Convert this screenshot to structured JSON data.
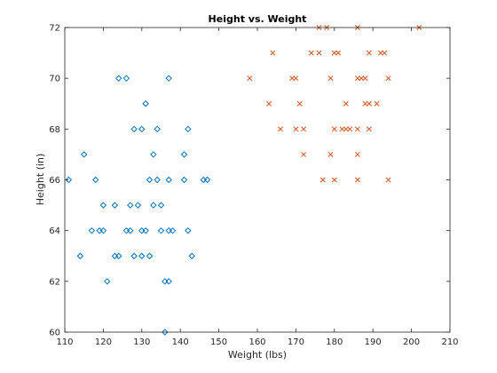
{
  "chart_data": {
    "type": "scatter",
    "title": "Height vs. Weight",
    "xlabel": "Weight (lbs)",
    "ylabel": "Height (in)",
    "xlim": [
      110,
      210
    ],
    "ylim": [
      60,
      72
    ],
    "xticks": [
      110,
      120,
      130,
      140,
      150,
      160,
      170,
      180,
      190,
      200,
      210
    ],
    "yticks": [
      60,
      62,
      64,
      66,
      68,
      70,
      72
    ],
    "grid": false,
    "legend": "none",
    "series": [
      {
        "marker": "diamond",
        "color": "#0072BD",
        "points": [
          [
            111,
            66
          ],
          [
            114,
            63
          ],
          [
            115,
            67
          ],
          [
            117,
            64
          ],
          [
            118,
            66
          ],
          [
            119,
            64
          ],
          [
            120,
            64
          ],
          [
            120,
            65
          ],
          [
            121,
            62
          ],
          [
            123,
            65
          ],
          [
            123,
            63
          ],
          [
            124,
            63
          ],
          [
            124,
            70
          ],
          [
            126,
            70
          ],
          [
            126,
            64
          ],
          [
            127,
            64
          ],
          [
            127,
            65
          ],
          [
            128,
            68
          ],
          [
            128,
            63
          ],
          [
            129,
            65
          ],
          [
            130,
            68
          ],
          [
            130,
            64
          ],
          [
            130,
            63
          ],
          [
            131,
            69
          ],
          [
            131,
            64
          ],
          [
            132,
            66
          ],
          [
            132,
            63
          ],
          [
            133,
            67
          ],
          [
            133,
            65
          ],
          [
            134,
            66
          ],
          [
            134,
            68
          ],
          [
            135,
            64
          ],
          [
            135,
            65
          ],
          [
            136,
            62
          ],
          [
            136,
            60
          ],
          [
            137,
            70
          ],
          [
            137,
            66
          ],
          [
            137,
            62
          ],
          [
            137,
            64
          ],
          [
            138,
            64
          ],
          [
            141,
            67
          ],
          [
            141,
            66
          ],
          [
            142,
            68
          ],
          [
            142,
            64
          ],
          [
            143,
            63
          ],
          [
            146,
            66
          ],
          [
            147,
            66
          ]
        ]
      },
      {
        "marker": "x",
        "color": "#D95319",
        "points": [
          [
            158,
            70
          ],
          [
            163,
            69
          ],
          [
            164,
            71
          ],
          [
            166,
            68
          ],
          [
            169,
            70
          ],
          [
            170,
            70
          ],
          [
            170,
            68
          ],
          [
            171,
            69
          ],
          [
            172,
            67
          ],
          [
            172,
            68
          ],
          [
            174,
            71
          ],
          [
            176,
            72
          ],
          [
            176,
            71
          ],
          [
            177,
            66
          ],
          [
            178,
            72
          ],
          [
            179,
            70
          ],
          [
            179,
            67
          ],
          [
            180,
            71
          ],
          [
            180,
            66
          ],
          [
            180,
            68
          ],
          [
            181,
            71
          ],
          [
            182,
            68
          ],
          [
            183,
            68
          ],
          [
            183,
            69
          ],
          [
            184,
            68
          ],
          [
            186,
            72
          ],
          [
            186,
            70
          ],
          [
            186,
            68
          ],
          [
            186,
            67
          ],
          [
            186,
            66
          ],
          [
            187,
            70
          ],
          [
            188,
            69
          ],
          [
            188,
            70
          ],
          [
            189,
            71
          ],
          [
            189,
            69
          ],
          [
            189,
            68
          ],
          [
            191,
            69
          ],
          [
            192,
            71
          ],
          [
            193,
            71
          ],
          [
            194,
            70
          ],
          [
            194,
            66
          ],
          [
            202,
            72
          ]
        ]
      }
    ]
  }
}
